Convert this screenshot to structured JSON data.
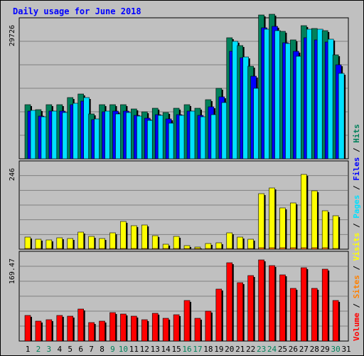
{
  "title": "Daily usage for June 2018",
  "chart_data": {
    "type": "bar",
    "categories": [
      "1",
      "2",
      "3",
      "4",
      "5",
      "6",
      "7",
      "8",
      "9",
      "10",
      "11",
      "12",
      "13",
      "14",
      "15",
      "16",
      "17",
      "18",
      "19",
      "20",
      "21",
      "22",
      "23",
      "24",
      "25",
      "26",
      "27",
      "28",
      "29",
      "30",
      "31"
    ],
    "weekend_days": [
      "2",
      "3",
      "9",
      "10",
      "16",
      "17",
      "23",
      "24",
      "30"
    ],
    "panels": [
      {
        "id": "top",
        "ymax_label": "29726",
        "ymax": 29726,
        "series": [
          {
            "name": "Hits",
            "color": "#00805a",
            "values": [
              11800,
              10700,
              11800,
              11800,
              13300,
              14100,
              9700,
              11800,
              11800,
              11800,
              10800,
              10200,
              11000,
              10000,
              11000,
              11800,
              11000,
              12900,
              15300,
              26300,
              24600,
              20200,
              31300,
              31400,
              27700,
              25800,
              28900,
              28400,
              27900,
              22600,
              null
            ]
          },
          {
            "name": "Files",
            "color": "#0000ff",
            "values": [
              10400,
              9300,
              10300,
              10300,
              11800,
              12500,
              8500,
              10200,
              10300,
              10400,
              9500,
              8900,
              9600,
              8600,
              9600,
              10400,
              9500,
              11300,
              13500,
              23400,
              22000,
              18000,
              28500,
              28800,
              25200,
              23400,
              26300,
              25800,
              25400,
              20400,
              null
            ]
          },
          {
            "name": "Pages",
            "color": "#00e0ff",
            "values": [
              10500,
              9100,
              10300,
              10100,
              12100,
              13300,
              8600,
              10400,
              9800,
              10100,
              9300,
              8300,
              9500,
              7800,
              9400,
              10300,
              9200,
              9600,
              12300,
              25500,
              22200,
              15300,
              28200,
              27800,
              25100,
              22300,
              28200,
              28200,
              26000,
              18600,
              null
            ]
          }
        ]
      },
      {
        "id": "middle",
        "ymax_label": "246",
        "ymax": 246,
        "series": [
          {
            "name": "Visits",
            "color": "#ffff00",
            "values": [
              36,
              29,
              27,
              33,
              32,
              50,
              38,
              32,
              47,
              81,
              68,
              70,
              40,
              14,
              38,
              10,
              7,
              17,
              19,
              47,
              35,
              29,
              163,
              179,
              120,
              136,
              218,
              170,
              113,
              97,
              null
            ]
          },
          {
            "name": "Sites",
            "color": "#ff8000",
            "values": [
              2,
              2,
              2,
              2,
              2,
              2,
              2,
              2,
              2,
              2,
              2,
              2,
              2,
              2,
              2,
              2,
              2,
              2,
              2,
              3,
              3,
              3,
              4,
              4,
              4,
              4,
              4,
              4,
              4,
              3,
              null
            ]
          }
        ]
      },
      {
        "id": "bottom",
        "ymax_label": "169.47",
        "ymax": 169.47,
        "series": [
          {
            "name": "Volume",
            "color": "#ff0000",
            "values": [
              51,
              39,
              43,
              51,
              49,
              63,
              37,
              40,
              56,
              54,
              49,
              43,
              55,
              45,
              52,
              81,
              45,
              60,
              103,
              155,
              116,
              130,
              161,
              150,
              131,
              104,
              146,
              104,
              142,
              81,
              null
            ]
          }
        ]
      }
    ],
    "right_legend": [
      {
        "text": "Volume",
        "color": "#ff0000"
      },
      {
        "text": "Sites",
        "color": "#ff8000"
      },
      {
        "text": "Visits",
        "color": "#ffff00"
      },
      {
        "text": "Pages",
        "color": "#00e0ff"
      },
      {
        "text": "Files",
        "color": "#0000ff"
      },
      {
        "text": "Hits",
        "color": "#00805a"
      }
    ],
    "separator": "/"
  }
}
